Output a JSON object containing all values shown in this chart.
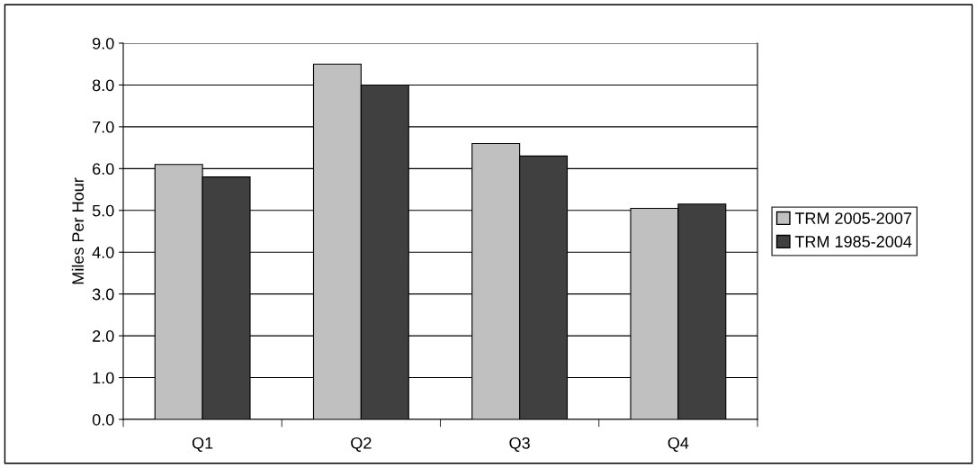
{
  "chart_data": {
    "type": "bar",
    "ylabel": "Miles Per Hour",
    "categories": [
      "Q1",
      "Q2",
      "Q3",
      "Q4"
    ],
    "series": [
      {
        "name": "TRM 2005-2007",
        "color": "#c0c0c0",
        "values": [
          6.1,
          8.5,
          6.6,
          5.05
        ]
      },
      {
        "name": "TRM 1985-2004",
        "color": "#404040",
        "values": [
          5.8,
          8.0,
          6.3,
          5.15
        ]
      }
    ],
    "ylim": [
      0,
      9
    ],
    "yticks": [
      {
        "value": 0,
        "label": "0.0"
      },
      {
        "value": 1,
        "label": "1.0"
      },
      {
        "value": 2,
        "label": "2.0"
      },
      {
        "value": 3,
        "label": "3.0"
      },
      {
        "value": 4,
        "label": "4.0"
      },
      {
        "value": 5,
        "label": "5.0"
      },
      {
        "value": 6,
        "label": "6.0"
      },
      {
        "value": 7,
        "label": "7.0"
      },
      {
        "value": 8,
        "label": "8.0"
      },
      {
        "value": 9,
        "label": "9.0"
      }
    ],
    "grid": "y",
    "legend": "right"
  }
}
